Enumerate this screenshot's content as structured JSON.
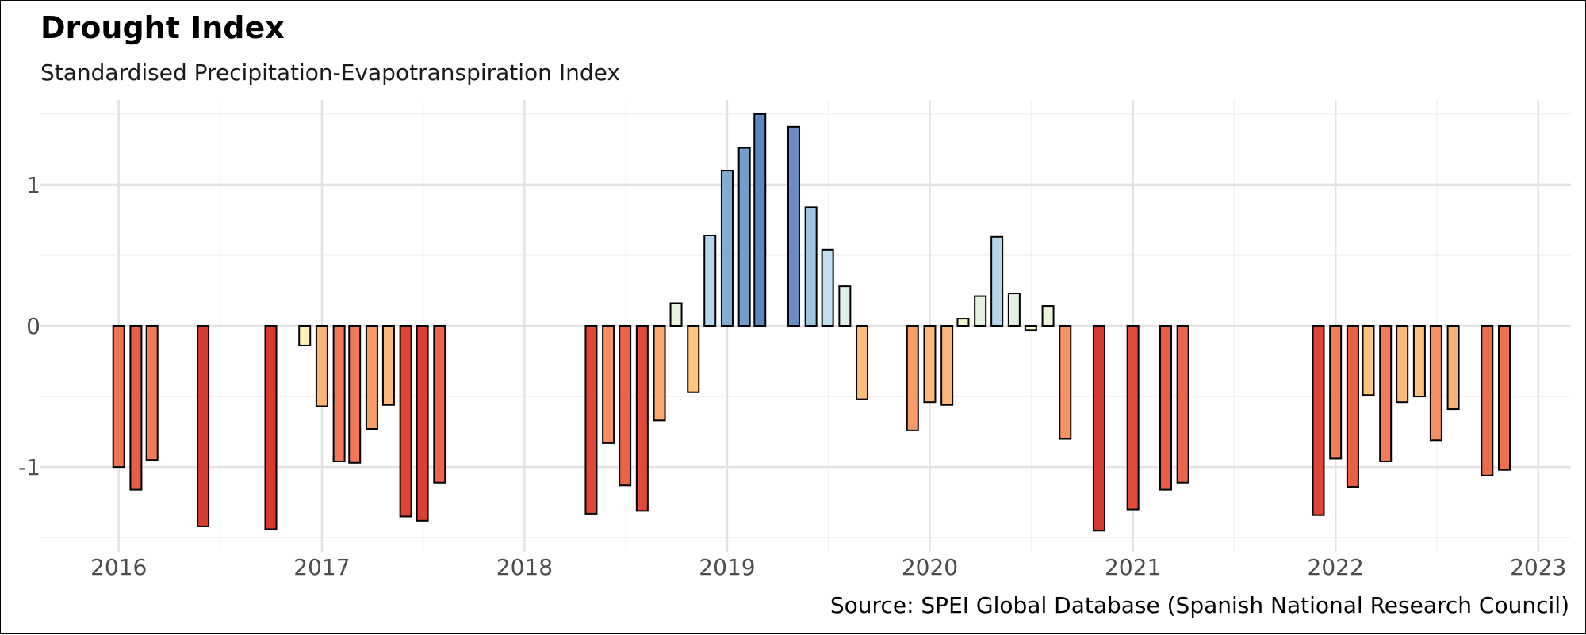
{
  "title": "Drought Index",
  "subtitle": "Standardised Precipitation-Evapotranspiration Index",
  "caption": "Source: SPEI Global Database (Spanish National Research Council)",
  "colors": {
    "grid_major": "#e3e3e3",
    "grid_minor": "#f2f2f2",
    "bar_stroke": "#000000",
    "tick_text": "#4d4d4d"
  },
  "chart_data": {
    "type": "bar",
    "title": "Drought Index",
    "subtitle": "Standardised Precipitation-Evapotranspiration Index",
    "xlabel": "",
    "ylabel": "",
    "x_axis": "date",
    "xlim": [
      "2015-08-13",
      "2023-03-01"
    ],
    "ylim": [
      -1.6,
      1.6
    ],
    "yticks": [
      1,
      0,
      -1
    ],
    "ytick_labels": [
      "1",
      "0",
      "-1"
    ],
    "xticks": [
      "2016-01-01",
      "2017-01-01",
      "2018-01-01",
      "2019-01-01",
      "2020-01-01",
      "2021-01-01",
      "2022-01-01",
      "2023-01-01"
    ],
    "xtick_labels": [
      "2016",
      "2017",
      "2018",
      "2019",
      "2020",
      "2021",
      "2022",
      "2023"
    ],
    "grid": true,
    "legend": "none",
    "color_scale": "diverging red-yellow-blue by value (negative = red, positive = blue)",
    "points": [
      {
        "date": "2016-01-01",
        "value": -1.0
      },
      {
        "date": "2016-02-01",
        "value": -1.16
      },
      {
        "date": "2016-03-01",
        "value": -0.95
      },
      {
        "date": "2016-06-01",
        "value": -1.42
      },
      {
        "date": "2016-10-01",
        "value": -1.44
      },
      {
        "date": "2016-12-01",
        "value": -0.14
      },
      {
        "date": "2017-01-01",
        "value": -0.57
      },
      {
        "date": "2017-02-01",
        "value": -0.96
      },
      {
        "date": "2017-03-01",
        "value": -0.97
      },
      {
        "date": "2017-04-01",
        "value": -0.73
      },
      {
        "date": "2017-05-01",
        "value": -0.56
      },
      {
        "date": "2017-06-01",
        "value": -1.35
      },
      {
        "date": "2017-07-01",
        "value": -1.38
      },
      {
        "date": "2017-08-01",
        "value": -1.11
      },
      {
        "date": "2018-05-01",
        "value": -1.33
      },
      {
        "date": "2018-06-01",
        "value": -0.83
      },
      {
        "date": "2018-07-01",
        "value": -1.13
      },
      {
        "date": "2018-08-01",
        "value": -1.31
      },
      {
        "date": "2018-09-01",
        "value": -0.67
      },
      {
        "date": "2018-10-01",
        "value": 0.16
      },
      {
        "date": "2018-11-01",
        "value": -0.47
      },
      {
        "date": "2018-12-01",
        "value": 0.64
      },
      {
        "date": "2019-01-01",
        "value": 1.1
      },
      {
        "date": "2019-02-01",
        "value": 1.26
      },
      {
        "date": "2019-03-01",
        "value": 1.5
      },
      {
        "date": "2019-05-01",
        "value": 1.41
      },
      {
        "date": "2019-06-01",
        "value": 0.84
      },
      {
        "date": "2019-07-01",
        "value": 0.54
      },
      {
        "date": "2019-08-01",
        "value": 0.28
      },
      {
        "date": "2019-09-01",
        "value": -0.52
      },
      {
        "date": "2019-12-01",
        "value": -0.74
      },
      {
        "date": "2020-01-01",
        "value": -0.54
      },
      {
        "date": "2020-02-01",
        "value": -0.56
      },
      {
        "date": "2020-03-01",
        "value": 0.05
      },
      {
        "date": "2020-04-01",
        "value": 0.21
      },
      {
        "date": "2020-05-01",
        "value": 0.63
      },
      {
        "date": "2020-06-01",
        "value": 0.23
      },
      {
        "date": "2020-07-01",
        "value": -0.03
      },
      {
        "date": "2020-08-01",
        "value": 0.14
      },
      {
        "date": "2020-09-01",
        "value": -0.8
      },
      {
        "date": "2020-11-01",
        "value": -1.45
      },
      {
        "date": "2021-01-01",
        "value": -1.3
      },
      {
        "date": "2021-03-01",
        "value": -1.16
      },
      {
        "date": "2021-04-01",
        "value": -1.11
      },
      {
        "date": "2021-12-01",
        "value": -1.34
      },
      {
        "date": "2022-01-01",
        "value": -0.94
      },
      {
        "date": "2022-02-01",
        "value": -1.14
      },
      {
        "date": "2022-03-01",
        "value": -0.49
      },
      {
        "date": "2022-04-01",
        "value": -0.96
      },
      {
        "date": "2022-05-01",
        "value": -0.54
      },
      {
        "date": "2022-06-01",
        "value": -0.5
      },
      {
        "date": "2022-07-01",
        "value": -0.81
      },
      {
        "date": "2022-08-01",
        "value": -0.59
      },
      {
        "date": "2022-10-01",
        "value": -1.06
      },
      {
        "date": "2022-11-01",
        "value": -1.02
      }
    ]
  }
}
